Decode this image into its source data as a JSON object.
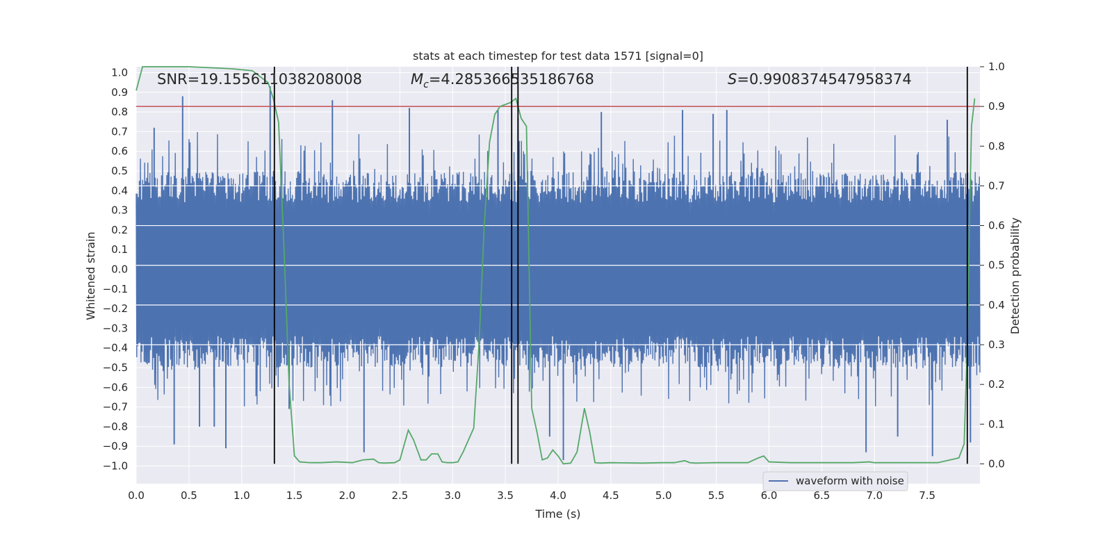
{
  "chart_data": {
    "type": "line",
    "title": "stats at each timestep for test data 1571 [signal=0]",
    "xlabel": "Time (s)",
    "ylabel_left": "Whitened strain",
    "ylabel_right": "Detection probability",
    "xlim": [
      0.0,
      8.0
    ],
    "ylim_left": [
      -1.09,
      1.03
    ],
    "ylim_right": [
      -0.05,
      1.0
    ],
    "x_ticks": [
      "0.0",
      "0.5",
      "1.0",
      "1.5",
      "2.0",
      "2.5",
      "3.0",
      "3.5",
      "4.0",
      "4.5",
      "5.0",
      "5.5",
      "6.0",
      "6.5",
      "7.0",
      "7.5"
    ],
    "x_tick_values": [
      0.0,
      0.5,
      1.0,
      1.5,
      2.0,
      2.5,
      3.0,
      3.5,
      4.0,
      4.5,
      5.0,
      5.5,
      6.0,
      6.5,
      7.0,
      7.5
    ],
    "y_ticks_left": [
      "1.0",
      "0.9",
      "0.8",
      "0.7",
      "0.6",
      "0.5",
      "0.4",
      "0.3",
      "0.2",
      "0.1",
      "0.0",
      "−0.1",
      "−0.2",
      "−0.3",
      "−0.4",
      "−0.5",
      "−0.6",
      "−0.7",
      "−0.8",
      "−0.9",
      "−1.0"
    ],
    "y_tick_values_left": [
      1.0,
      0.9,
      0.8,
      0.7,
      0.6,
      0.5,
      0.4,
      0.3,
      0.2,
      0.1,
      0.0,
      -0.1,
      -0.2,
      -0.3,
      -0.4,
      -0.5,
      -0.6,
      -0.7,
      -0.8,
      -0.9,
      -1.0
    ],
    "y_ticks_right": [
      "1.0",
      "0.9",
      "0.8",
      "0.7",
      "0.6",
      "0.5",
      "0.4",
      "0.3",
      "0.2",
      "0.1",
      "0.0"
    ],
    "y_tick_values_right": [
      1.0,
      0.9,
      0.8,
      0.7,
      0.6,
      0.5,
      0.4,
      0.3,
      0.2,
      0.1,
      0.0
    ],
    "annotations": {
      "snr": "SNR=19.155611038208008",
      "mc_symbol": "M",
      "mc_sub": "c",
      "mc_value": "=4.285366535186768",
      "s_symbol": "S",
      "s_value": "=0.9908374547958374"
    },
    "legend": {
      "label": "waveform with noise",
      "location": "lower-right"
    },
    "threshold": {
      "value": 0.9,
      "axis": "right",
      "color": "#c44e52"
    },
    "vertical_markers": [
      1.31,
      3.56,
      3.62,
      7.88
    ],
    "waveform": {
      "name": "waveform with noise",
      "color": "#4c72b0",
      "x_range": [
        0.0,
        8.0
      ],
      "samples": 1600,
      "core_amplitude": 0.4,
      "upper_peaks": [
        {
          "x": 0.44,
          "y": 0.88
        },
        {
          "x": 1.27,
          "y": 0.93
        },
        {
          "x": 1.86,
          "y": 0.86
        },
        {
          "x": 2.59,
          "y": 0.82
        },
        {
          "x": 3.43,
          "y": 0.81
        },
        {
          "x": 3.62,
          "y": 0.77
        },
        {
          "x": 4.41,
          "y": 0.8
        },
        {
          "x": 5.18,
          "y": 0.81
        },
        {
          "x": 5.47,
          "y": 0.79
        },
        {
          "x": 5.6,
          "y": 0.81
        },
        {
          "x": 7.69,
          "y": 0.76
        },
        {
          "x": 0.17,
          "y": 0.72
        }
      ],
      "lower_peaks": [
        {
          "x": 0.36,
          "y": -0.89
        },
        {
          "x": 0.85,
          "y": -0.91
        },
        {
          "x": 2.16,
          "y": -0.93
        },
        {
          "x": 4.05,
          "y": -0.97
        },
        {
          "x": 6.92,
          "y": -0.93
        },
        {
          "x": 7.55,
          "y": -0.95
        },
        {
          "x": 7.91,
          "y": -0.88
        },
        {
          "x": 0.6,
          "y": -0.8
        },
        {
          "x": 0.74,
          "y": -0.8
        },
        {
          "x": 3.92,
          "y": -0.85
        },
        {
          "x": 1.45,
          "y": -0.71
        },
        {
          "x": 7.22,
          "y": -0.85
        }
      ]
    },
    "series": [
      {
        "name": "Detection probability",
        "axis": "right",
        "color": "#55a868",
        "x": [
          0.0,
          0.06,
          0.2,
          0.5,
          0.9,
          1.1,
          1.15,
          1.25,
          1.3,
          1.35,
          1.4,
          1.45,
          1.5,
          1.55,
          1.65,
          1.75,
          1.9,
          2.05,
          2.15,
          2.25,
          2.3,
          2.35,
          2.45,
          2.5,
          2.58,
          2.63,
          2.7,
          2.75,
          2.8,
          2.86,
          2.9,
          2.95,
          3.0,
          3.05,
          3.1,
          3.2,
          3.25,
          3.3,
          3.35,
          3.4,
          3.45,
          3.55,
          3.6,
          3.65,
          3.7,
          3.75,
          3.8,
          3.85,
          3.9,
          3.95,
          4.0,
          4.05,
          4.12,
          4.18,
          4.25,
          4.3,
          4.35,
          4.4,
          4.5,
          4.8,
          5.0,
          5.1,
          5.2,
          5.25,
          5.3,
          5.5,
          5.8,
          5.9,
          5.95,
          6.0,
          6.2,
          6.5,
          6.8,
          6.95,
          7.0,
          7.3,
          7.5,
          7.6,
          7.8,
          7.85,
          7.88,
          7.9,
          7.92,
          7.95
        ],
        "y": [
          0.94,
          1.0,
          1.0,
          1.0,
          0.995,
          0.99,
          0.98,
          0.96,
          0.92,
          0.86,
          0.55,
          0.2,
          0.02,
          0.005,
          0.003,
          0.003,
          0.005,
          0.003,
          0.01,
          0.012,
          0.003,
          0.002,
          0.003,
          0.01,
          0.085,
          0.06,
          0.01,
          0.01,
          0.025,
          0.025,
          0.005,
          0.003,
          0.003,
          0.005,
          0.03,
          0.09,
          0.3,
          0.6,
          0.81,
          0.88,
          0.9,
          0.91,
          0.92,
          0.87,
          0.85,
          0.14,
          0.08,
          0.01,
          0.015,
          0.035,
          0.02,
          0.0,
          0.002,
          0.03,
          0.14,
          0.08,
          0.003,
          0.002,
          0.003,
          0.002,
          0.003,
          0.003,
          0.008,
          0.003,
          0.002,
          0.003,
          0.003,
          0.015,
          0.02,
          0.005,
          0.003,
          0.003,
          0.003,
          0.005,
          0.003,
          0.003,
          0.003,
          0.003,
          0.015,
          0.05,
          0.3,
          0.6,
          0.85,
          0.92
        ]
      }
    ]
  }
}
